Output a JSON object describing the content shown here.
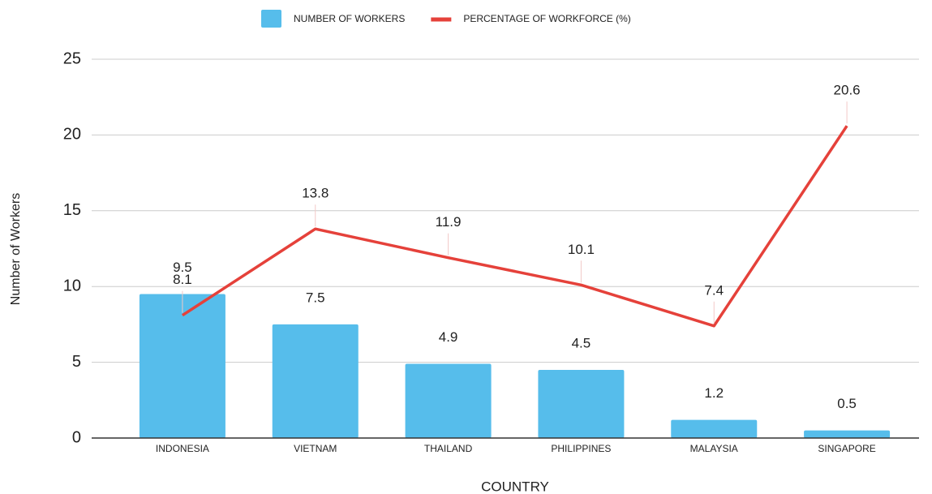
{
  "chart_data": {
    "type": "bar",
    "x_label": "COUNTRY",
    "y_label": "Number of Workers",
    "categories": [
      "INDONESIA",
      "VIETNAM",
      "THAILAND",
      "PHILIPPINES",
      "MALAYSIA",
      "SINGAPORE"
    ],
    "series": [
      {
        "name": "NUMBER OF WORKERS",
        "type": "bar",
        "color": "#56bdeb",
        "values": [
          9.5,
          7.5,
          4.9,
          4.5,
          1.2,
          0.5
        ]
      },
      {
        "name": "PERCENTAGE OF WORKFORCE (%)",
        "type": "line",
        "color": "#e5413a",
        "values": [
          8.1,
          13.8,
          11.9,
          10.1,
          7.4,
          20.6
        ]
      }
    ],
    "ylim": [
      0,
      25
    ],
    "yticks": [
      0,
      5,
      10,
      15,
      20,
      25
    ],
    "grid": true,
    "legend": "top"
  }
}
